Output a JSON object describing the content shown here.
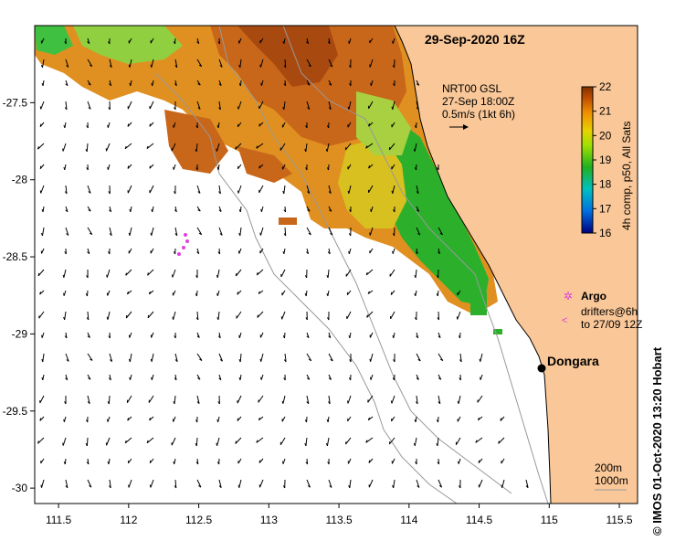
{
  "title": "29-Sep-2020 16Z",
  "current_model": {
    "line1": "NRT00 GSL",
    "line2": "27-Sep 18:00Z",
    "line3": "0.5m/s (1kt 6h)"
  },
  "colorbar": {
    "label": "4h comp, p50, All Sats",
    "ticks": [
      "22",
      "21",
      "20",
      "19",
      "18",
      "17",
      "16"
    ],
    "range": [
      16,
      22
    ]
  },
  "axes": {
    "x_ticks": [
      "111.5",
      "112",
      "112.5",
      "113",
      "113.5",
      "114",
      "114.5",
      "115",
      "115.5"
    ],
    "y_ticks": [
      "-27.5",
      "-28",
      "-28.5",
      "-29",
      "-29.5",
      "-30"
    ],
    "xlim": [
      111.33,
      115.63
    ],
    "ylim": [
      -30.1,
      -27.0
    ]
  },
  "legend": {
    "argo": "Argo",
    "drifters_line1": "drifters@6h",
    "drifters_line2": "to 27/09 12Z",
    "depth_200": "200m",
    "depth_1000": "1000m"
  },
  "place": {
    "name": "Dongara",
    "lon": 114.93,
    "lat": -29.25
  },
  "credit": "© IMOS 01-Oct-2020 13:20 Hobart",
  "colors": {
    "land": "#f9c798",
    "argo": "#e040e0",
    "contour": "#999999"
  }
}
